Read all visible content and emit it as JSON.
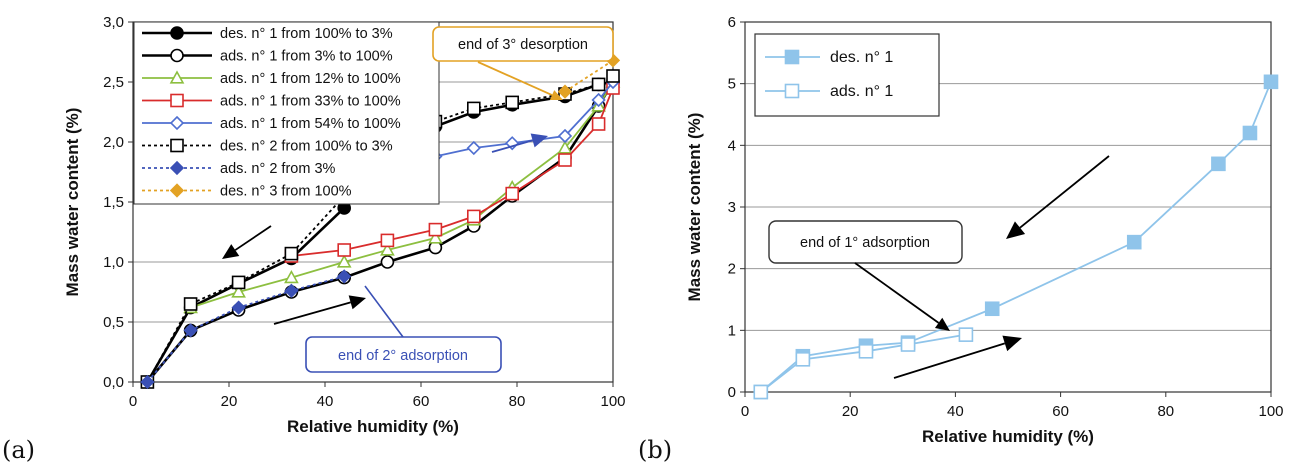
{
  "panel_labels": [
    "(a)",
    "(b)"
  ],
  "chart_data": [
    {
      "type": "line",
      "xlabel": "Relative humidity (%)",
      "ylabel": "Mass water content (%)",
      "xlim": [
        0,
        100
      ],
      "ylim": [
        0,
        3.0
      ],
      "xticks": [
        "0",
        "20",
        "40",
        "60",
        "80",
        "100"
      ],
      "yticks": [
        "0,0",
        "0,5",
        "1,0",
        "1,5",
        "2,0",
        "2,5",
        "3,0"
      ],
      "grid": "horizontal",
      "legend_position": "top-left",
      "series": [
        {
          "name": "des. n° 1 from 100% to 3%",
          "color": "#000000",
          "marker": "filled-circle",
          "dash": "solid",
          "x": [
            3,
            12,
            22,
            33,
            44,
            53,
            63,
            71,
            79,
            90,
            97,
            100
          ],
          "y": [
            0,
            0.62,
            0.82,
            1.03,
            1.45,
            1.85,
            2.13,
            2.25,
            2.31,
            2.38,
            2.48,
            2.5
          ]
        },
        {
          "name": "ads. n° 1 from 3% to 100%",
          "color": "#000000",
          "marker": "open-circle",
          "dash": "solid",
          "x": [
            3,
            12,
            22,
            33,
            44,
            53,
            63,
            71,
            79,
            90,
            97,
            100
          ],
          "y": [
            0,
            0.43,
            0.6,
            0.75,
            0.87,
            1.0,
            1.12,
            1.3,
            1.55,
            1.87,
            2.3,
            2.5
          ]
        },
        {
          "name": "ads. n° 1 from 12% to 100%",
          "color": "#8dbf40",
          "marker": "open-triangle",
          "dash": "solid",
          "x": [
            12,
            22,
            33,
            44,
            53,
            63,
            71,
            79,
            90,
            97,
            100
          ],
          "y": [
            0.62,
            0.75,
            0.87,
            1.0,
            1.1,
            1.2,
            1.35,
            1.62,
            1.95,
            2.3,
            2.5
          ]
        },
        {
          "name": "ads. n° 1 from 33% to 100%",
          "color": "#d92c2c",
          "marker": "open-square",
          "dash": "solid",
          "x": [
            33,
            44,
            53,
            63,
            71,
            79,
            90,
            97,
            100
          ],
          "y": [
            1.05,
            1.1,
            1.18,
            1.27,
            1.38,
            1.57,
            1.85,
            2.15,
            2.45
          ]
        },
        {
          "name": "ads. n° 1 from 54% to 100%",
          "color": "#4f6fd0",
          "marker": "open-diamond",
          "dash": "solid",
          "x": [
            53,
            63,
            71,
            79,
            90,
            97,
            100
          ],
          "y": [
            1.85,
            1.88,
            1.95,
            1.99,
            2.05,
            2.35,
            2.5
          ]
        },
        {
          "name": "des. n° 2 from 100% to 3%",
          "color": "#000000",
          "marker": "open-square",
          "dash": "dotted",
          "x": [
            3,
            12,
            22,
            33,
            44,
            53,
            63,
            71,
            79,
            90,
            97,
            100
          ],
          "y": [
            0,
            0.65,
            0.83,
            1.07,
            1.55,
            1.93,
            2.17,
            2.28,
            2.33,
            2.4,
            2.48,
            2.55
          ]
        },
        {
          "name": "ads. n° 2 from 3%",
          "color": "#3a50b5",
          "marker": "filled-diamond",
          "dash": "dotted",
          "x": [
            3,
            12,
            22,
            33,
            44
          ],
          "y": [
            0,
            0.43,
            0.62,
            0.76,
            0.88
          ]
        },
        {
          "name": "des. n° 3 from 100%",
          "color": "#e3a224",
          "marker": "filled-diamond",
          "dash": "dotted",
          "x": [
            90,
            100
          ],
          "y": [
            2.42,
            2.68
          ]
        }
      ],
      "annotations": [
        "end of 3° desorption",
        "end of 2° adsorption"
      ]
    },
    {
      "type": "line",
      "xlabel": "Relative humidity (%)",
      "ylabel": "Mass water content (%)",
      "xlim": [
        0,
        100
      ],
      "ylim": [
        0,
        6
      ],
      "xticks": [
        "0",
        "20",
        "40",
        "60",
        "80",
        "100"
      ],
      "yticks": [
        "0",
        "1",
        "2",
        "3",
        "4",
        "5",
        "6"
      ],
      "grid": "horizontal",
      "legend_position": "top-left",
      "series": [
        {
          "name": "des. n° 1",
          "color": "#8fc4ea",
          "marker": "filled-square",
          "dash": "solid",
          "x": [
            3,
            11,
            23,
            31,
            47,
            74,
            90,
            96,
            100
          ],
          "y": [
            0,
            0.58,
            0.75,
            0.8,
            1.35,
            2.43,
            3.7,
            4.2,
            5.03
          ]
        },
        {
          "name": "ads. n° 1",
          "color": "#8fc4ea",
          "marker": "open-square",
          "dash": "solid",
          "x": [
            3,
            11,
            23,
            31,
            42
          ],
          "y": [
            0,
            0.53,
            0.66,
            0.77,
            0.93
          ]
        }
      ],
      "annotations": [
        "end of 1° adsorption"
      ]
    }
  ]
}
